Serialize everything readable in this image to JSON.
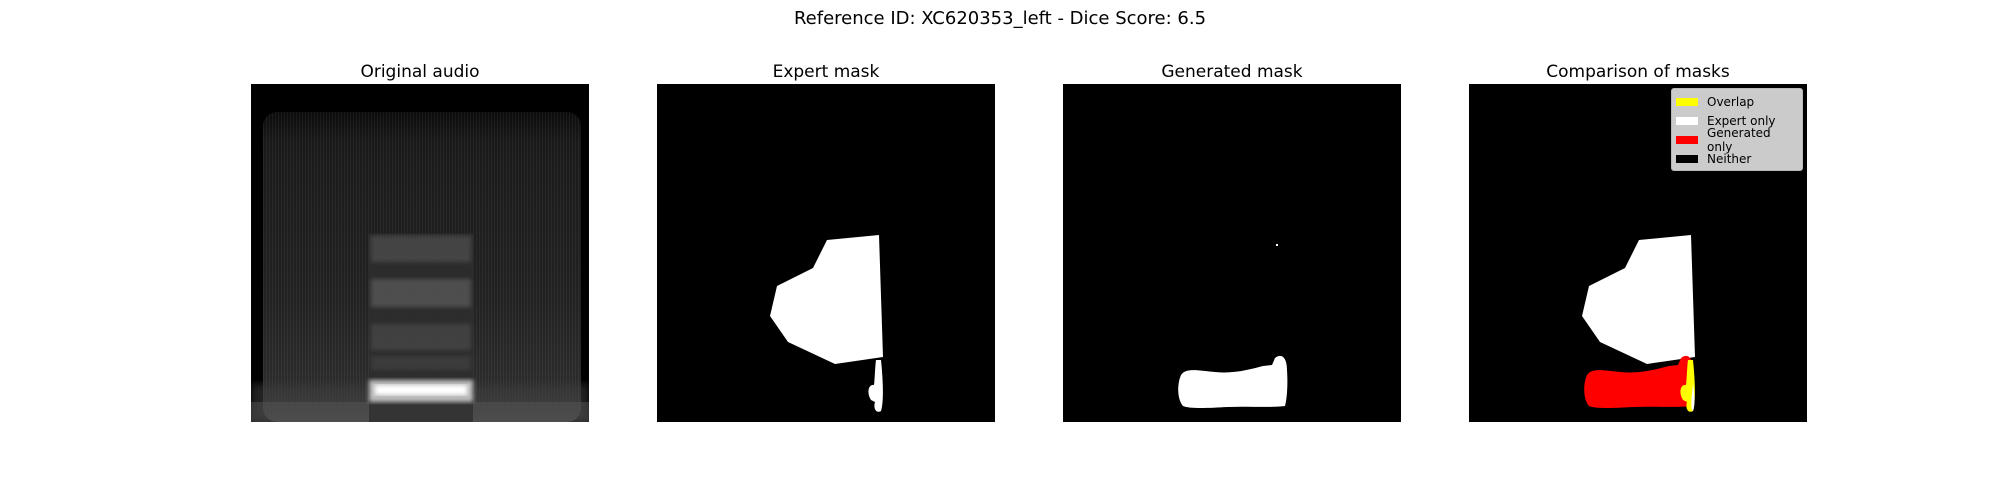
{
  "figure": {
    "suptitle": "Reference ID: XC620353_left - Dice Score: 6.5"
  },
  "panels": [
    {
      "title": "Original audio"
    },
    {
      "title": "Expert mask"
    },
    {
      "title": "Generated mask"
    },
    {
      "title": "Comparison of masks"
    }
  ],
  "legend": {
    "items": [
      {
        "label": "Overlap",
        "color": "#ffff00"
      },
      {
        "label": "Expert only",
        "color": "#ffffff"
      },
      {
        "label": "Generated only",
        "color": "#ff0000"
      },
      {
        "label": "Neither",
        "color": "#000000"
      }
    ]
  }
}
